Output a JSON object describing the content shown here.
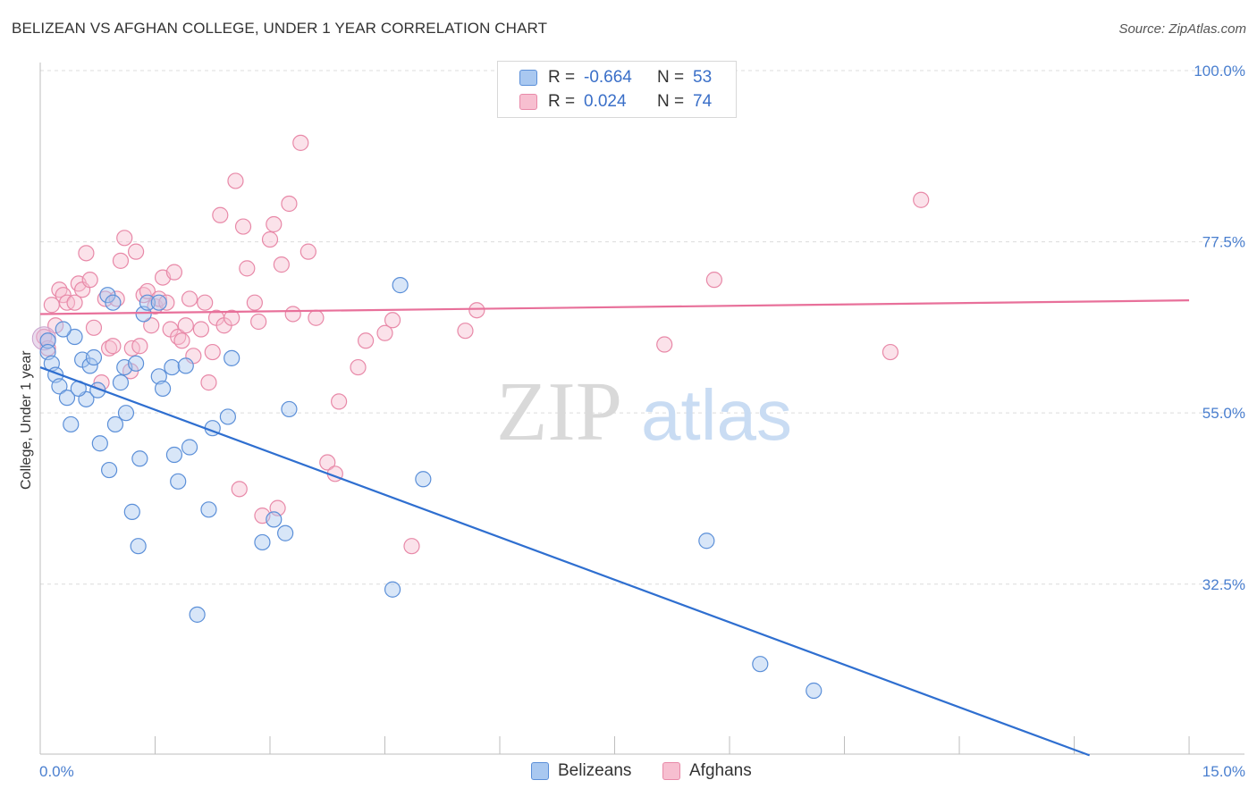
{
  "title": "BELIZEAN VS AFGHAN COLLEGE, UNDER 1 YEAR CORRELATION CHART",
  "source": "Source: ZipAtlas.com",
  "watermark": {
    "zip": "ZIP",
    "atlas": "atlas"
  },
  "legend": {
    "r_label": "R =",
    "n_label": "N =",
    "rows": [
      {
        "r": "-0.664",
        "n": "53"
      },
      {
        "r": "0.024",
        "n": "74"
      }
    ]
  },
  "bottom_legend": [
    "Belizeans",
    "Afghans"
  ],
  "colors": {
    "belizeans_fill": "#a9c8f0",
    "belizeans_stroke": "#5b8fd8",
    "belizeans_line": "#2f6fd0",
    "afghans_fill": "#f7bfd0",
    "afghans_stroke": "#e889a8",
    "afghans_line": "#e8709a",
    "tick_text": "#4a7fcf"
  },
  "chart_data": {
    "type": "scatter",
    "title": "BELIZEAN VS AFGHAN COLLEGE, UNDER 1 YEAR CORRELATION CHART",
    "xlabel": "",
    "ylabel": "College, Under 1 year",
    "xlim": [
      0,
      15
    ],
    "ylim": [
      10,
      102
    ],
    "x_tick_labels": [
      "0.0%",
      "15.0%"
    ],
    "y_ticks": [
      32.5,
      55.0,
      77.5,
      100.0
    ],
    "y_tick_labels": [
      "32.5%",
      "55.0%",
      "77.5%",
      "100.0%"
    ],
    "grid": true,
    "series": [
      {
        "name": "Belizeans",
        "r": -0.664,
        "n": 53,
        "trend": {
          "x": [
            0,
            13.7
          ],
          "y": [
            61.0,
            10.0
          ]
        },
        "points": [
          [
            0.1,
            64.5
          ],
          [
            0.1,
            63.0
          ],
          [
            0.15,
            61.5
          ],
          [
            0.2,
            60.0
          ],
          [
            0.25,
            58.5
          ],
          [
            0.35,
            57.0
          ],
          [
            0.4,
            53.5
          ],
          [
            0.45,
            65.0
          ],
          [
            0.3,
            66.0
          ],
          [
            0.55,
            62.0
          ],
          [
            0.6,
            56.8
          ],
          [
            0.5,
            58.2
          ],
          [
            0.65,
            61.2
          ],
          [
            0.7,
            62.3
          ],
          [
            0.75,
            58.0
          ],
          [
            0.78,
            51.0
          ],
          [
            0.88,
            70.5
          ],
          [
            0.9,
            47.5
          ],
          [
            0.95,
            69.5
          ],
          [
            0.98,
            53.5
          ],
          [
            1.05,
            59.0
          ],
          [
            1.1,
            61.0
          ],
          [
            1.12,
            55.0
          ],
          [
            1.2,
            42.0
          ],
          [
            1.25,
            61.5
          ],
          [
            1.28,
            37.5
          ],
          [
            1.3,
            49.0
          ],
          [
            1.35,
            68.0
          ],
          [
            1.4,
            69.5
          ],
          [
            1.55,
            69.5
          ],
          [
            1.55,
            59.8
          ],
          [
            1.6,
            58.2
          ],
          [
            1.72,
            61.0
          ],
          [
            1.75,
            49.5
          ],
          [
            1.8,
            46.0
          ],
          [
            1.9,
            61.2
          ],
          [
            1.95,
            50.5
          ],
          [
            2.05,
            28.5
          ],
          [
            2.2,
            42.3
          ],
          [
            2.25,
            53.0
          ],
          [
            2.45,
            54.5
          ],
          [
            2.5,
            62.2
          ],
          [
            2.9,
            38.0
          ],
          [
            3.05,
            41.0
          ],
          [
            3.2,
            39.2
          ],
          [
            3.25,
            55.5
          ],
          [
            4.6,
            31.8
          ],
          [
            4.7,
            71.8
          ],
          [
            5.0,
            46.3
          ],
          [
            8.7,
            38.2
          ],
          [
            9.4,
            22.0
          ],
          [
            10.1,
            18.5
          ]
        ]
      },
      {
        "name": "Afghans",
        "r": 0.024,
        "n": 74,
        "trend": {
          "x": [
            0,
            15
          ],
          "y": [
            68.0,
            69.8
          ]
        },
        "points": [
          [
            0.05,
            65.0
          ],
          [
            0.1,
            63.5
          ],
          [
            0.15,
            69.2
          ],
          [
            0.2,
            66.5
          ],
          [
            0.25,
            71.2
          ],
          [
            0.3,
            70.5
          ],
          [
            0.35,
            69.5
          ],
          [
            0.45,
            69.5
          ],
          [
            0.5,
            72.0
          ],
          [
            0.55,
            71.2
          ],
          [
            0.6,
            76.0
          ],
          [
            0.65,
            72.5
          ],
          [
            0.7,
            66.2
          ],
          [
            0.8,
            59.0
          ],
          [
            0.85,
            70.0
          ],
          [
            0.9,
            63.5
          ],
          [
            0.95,
            63.8
          ],
          [
            1.0,
            70.0
          ],
          [
            1.05,
            75.0
          ],
          [
            1.1,
            78.0
          ],
          [
            1.18,
            60.5
          ],
          [
            1.2,
            63.5
          ],
          [
            1.25,
            76.2
          ],
          [
            1.3,
            63.8
          ],
          [
            1.35,
            70.5
          ],
          [
            1.4,
            71.0
          ],
          [
            1.45,
            66.5
          ],
          [
            1.5,
            69.0
          ],
          [
            1.55,
            70.0
          ],
          [
            1.6,
            72.8
          ],
          [
            1.65,
            69.5
          ],
          [
            1.7,
            66.0
          ],
          [
            1.75,
            73.5
          ],
          [
            1.8,
            65.0
          ],
          [
            1.85,
            64.5
          ],
          [
            1.9,
            66.5
          ],
          [
            1.95,
            70.0
          ],
          [
            2.0,
            62.5
          ],
          [
            2.1,
            66.0
          ],
          [
            2.15,
            69.5
          ],
          [
            2.2,
            59.0
          ],
          [
            2.25,
            63.0
          ],
          [
            2.3,
            67.5
          ],
          [
            2.35,
            81.0
          ],
          [
            2.4,
            66.5
          ],
          [
            2.5,
            67.5
          ],
          [
            2.55,
            85.5
          ],
          [
            2.6,
            45.0
          ],
          [
            2.65,
            79.5
          ],
          [
            2.7,
            74.0
          ],
          [
            2.8,
            69.5
          ],
          [
            2.85,
            67.0
          ],
          [
            2.9,
            41.5
          ],
          [
            3.0,
            77.8
          ],
          [
            3.05,
            79.8
          ],
          [
            3.1,
            42.5
          ],
          [
            3.15,
            74.5
          ],
          [
            3.25,
            82.5
          ],
          [
            3.3,
            68.0
          ],
          [
            3.4,
            90.5
          ],
          [
            3.5,
            76.2
          ],
          [
            3.6,
            67.5
          ],
          [
            3.75,
            48.5
          ],
          [
            3.85,
            47.0
          ],
          [
            3.9,
            56.5
          ],
          [
            4.15,
            61.0
          ],
          [
            4.25,
            64.5
          ],
          [
            4.5,
            65.5
          ],
          [
            4.6,
            67.2
          ],
          [
            4.85,
            37.5
          ],
          [
            5.55,
            65.8
          ],
          [
            5.7,
            68.5
          ],
          [
            8.15,
            64.0
          ],
          [
            8.8,
            72.5
          ],
          [
            11.1,
            63.0
          ],
          [
            11.5,
            83.0
          ]
        ]
      }
    ]
  }
}
